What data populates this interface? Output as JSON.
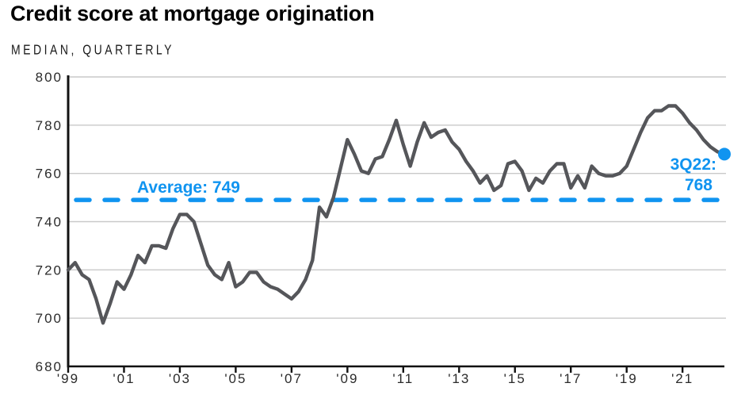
{
  "title": "Credit score at mortgage origination",
  "subtitle": "MEDIAN, QUARTERLY",
  "annotations": {
    "average_label": "Average: 749",
    "endpoint_label_line1": "3Q22:",
    "endpoint_label_line2": "768"
  },
  "colors": {
    "accent_blue": "#1094F0",
    "series_gray": "#55565A",
    "grid_gray": "#C9C9C9",
    "axis_black": "#111111"
  },
  "chart_data": {
    "type": "line",
    "title": "Credit score at mortgage origination",
    "subtitle": "MEDIAN, QUARTERLY",
    "ylabel": "",
    "xlabel": "",
    "ylim": [
      680,
      800
    ],
    "y_ticks": [
      800,
      780,
      760,
      740,
      720,
      700,
      680
    ],
    "x_tick_labels": [
      "'99",
      "'01",
      "'03",
      "'05",
      "'07",
      "'09",
      "'11",
      "'13",
      "'15",
      "'17",
      "'19",
      "'21"
    ],
    "grid": "horizontal",
    "legend": "none",
    "average_line": {
      "value": 749,
      "style": "dashed",
      "color": "#1094F0",
      "label": "Average: 749"
    },
    "endpoint_marker": {
      "quarter": "3Q22",
      "value": 768,
      "label_line1": "3Q22:",
      "label_line2": "768"
    },
    "series": [
      {
        "name": "Median credit score at mortgage origination",
        "frequency": "quarterly",
        "start_quarter": "1Q99",
        "end_quarter": "3Q22",
        "values": [
          720,
          723,
          718,
          716,
          708,
          698,
          706,
          715,
          712,
          718,
          726,
          723,
          730,
          730,
          729,
          737,
          743,
          743,
          740,
          731,
          722,
          718,
          716,
          723,
          713,
          715,
          719,
          719,
          715,
          713,
          712,
          710,
          708,
          711,
          716,
          724,
          746,
          742,
          750,
          762,
          774,
          768,
          761,
          760,
          766,
          767,
          774,
          782,
          772,
          763,
          773,
          781,
          775,
          777,
          778,
          773,
          770,
          765,
          761,
          756,
          759,
          753,
          755,
          764,
          765,
          761,
          753,
          758,
          756,
          761,
          764,
          764,
          754,
          759,
          754,
          763,
          760,
          759,
          759,
          760,
          763,
          770,
          777,
          783,
          786,
          786,
          788,
          788,
          785,
          781,
          778,
          774,
          771,
          769,
          768
        ]
      }
    ]
  }
}
